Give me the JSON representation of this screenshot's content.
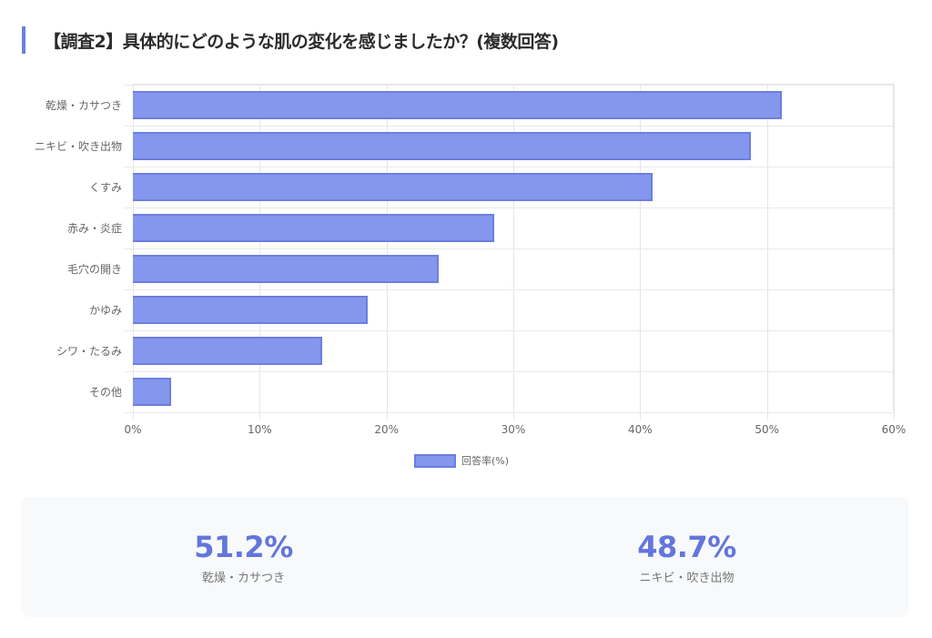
{
  "header": {
    "title": "【調査2】具体的にどのような肌の変化を感じましたか？(複数回答)"
  },
  "colors": {
    "accent": "#6b7fe0",
    "bar_fill": "#8597ec",
    "bar_border": "#6b7fe0",
    "stat_value": "#6276dc",
    "summary_bg": "#f7f9fb"
  },
  "chart_data": {
    "type": "bar",
    "orientation": "horizontal",
    "title": "【調査2】具体的にどのような肌の変化を感じましたか？(複数回答)",
    "categories": [
      "乾燥・カサつき",
      "ニキビ・吹き出物",
      "くすみ",
      "赤み・炎症",
      "毛穴の開き",
      "かゆみ",
      "シワ・たるみ",
      "その他"
    ],
    "series": [
      {
        "name": "回答率(%)",
        "values": [
          51.2,
          48.7,
          41.0,
          28.5,
          24.1,
          18.5,
          14.9,
          3.0
        ]
      }
    ],
    "xlabel": "",
    "ylabel": "",
    "xlim": [
      0,
      60
    ],
    "x_ticks": [
      "0%",
      "10%",
      "20%",
      "30%",
      "40%",
      "50%",
      "60%"
    ],
    "grid": true,
    "legend_position": "bottom"
  },
  "legend": {
    "label": "回答率(%)"
  },
  "summary": [
    {
      "value": "51.2%",
      "label": "乾燥・カサつき"
    },
    {
      "value": "48.7%",
      "label": "ニキビ・吹き出物"
    }
  ]
}
